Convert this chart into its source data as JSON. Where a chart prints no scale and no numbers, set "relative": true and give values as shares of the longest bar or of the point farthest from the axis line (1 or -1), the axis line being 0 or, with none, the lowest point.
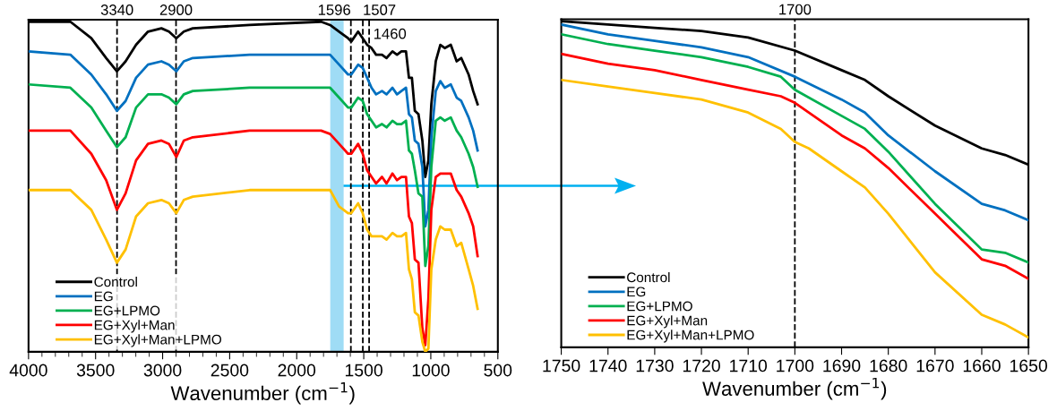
{
  "chart_data": [
    {
      "type": "line",
      "relative": true,
      "xlabel": "Wavenumber (cm$^{−1}$)",
      "xlim": [
        4000,
        500
      ],
      "xticks": [
        4000,
        3500,
        3000,
        2500,
        2000,
        1500,
        1000,
        500
      ],
      "tick_labels": "x",
      "grid": false,
      "legend": "bottom left",
      "line_style": "solid",
      "marker": "none",
      "x": [
        4000,
        3688,
        3532,
        3421,
        3341,
        3276,
        3198,
        3109,
        3009,
        2953,
        2898,
        2842,
        2775,
        2352,
        1818,
        1751,
        1684,
        1617,
        1593,
        1542,
        1508,
        1475,
        1442,
        1408,
        1364,
        1330,
        1286,
        1252,
        1219,
        1185,
        1163,
        1141,
        1119,
        1092,
        1063,
        1041,
        1018,
        996,
        963,
        929,
        896,
        851,
        807,
        773,
        718,
        684,
        651
      ],
      "series": [
        {
          "name": "Control",
          "color": "#000000",
          "values": [
            1.0,
            1.0,
            0.95,
            0.89,
            0.85,
            0.88,
            0.93,
            0.97,
            0.98,
            0.97,
            0.95,
            0.97,
            0.98,
            0.99,
            1.0,
            0.99,
            0.97,
            0.95,
            0.94,
            0.97,
            0.95,
            0.93,
            0.92,
            0.9,
            0.9,
            0.89,
            0.91,
            0.9,
            0.91,
            0.91,
            0.83,
            0.83,
            0.73,
            0.72,
            0.64,
            0.53,
            0.58,
            0.75,
            0.88,
            0.93,
            0.92,
            0.93,
            0.88,
            0.89,
            0.84,
            0.79,
            0.75
          ]
        },
        {
          "name": "EG",
          "color": "#0070c0",
          "values": [
            0.91,
            0.9,
            0.84,
            0.78,
            0.73,
            0.76,
            0.83,
            0.87,
            0.88,
            0.87,
            0.85,
            0.88,
            0.89,
            0.9,
            0.9,
            0.9,
            0.87,
            0.84,
            0.84,
            0.87,
            0.86,
            0.83,
            0.8,
            0.78,
            0.79,
            0.78,
            0.8,
            0.78,
            0.79,
            0.8,
            0.72,
            0.71,
            0.64,
            0.63,
            0.56,
            0.38,
            0.43,
            0.65,
            0.79,
            0.82,
            0.8,
            0.81,
            0.77,
            0.76,
            0.71,
            0.67,
            0.61
          ]
        },
        {
          "name": "EG+LPMO",
          "color": "#00b050",
          "values": [
            0.81,
            0.8,
            0.74,
            0.67,
            0.62,
            0.65,
            0.74,
            0.78,
            0.78,
            0.77,
            0.75,
            0.78,
            0.79,
            0.8,
            0.8,
            0.8,
            0.77,
            0.74,
            0.74,
            0.77,
            0.76,
            0.72,
            0.7,
            0.68,
            0.69,
            0.68,
            0.7,
            0.69,
            0.69,
            0.7,
            0.61,
            0.6,
            0.55,
            0.48,
            0.47,
            0.26,
            0.32,
            0.56,
            0.7,
            0.71,
            0.7,
            0.71,
            0.67,
            0.65,
            0.6,
            0.56,
            0.5
          ]
        },
        {
          "name": "EG+Xyl+Man",
          "color": "#ff0000",
          "values": [
            0.67,
            0.67,
            0.6,
            0.52,
            0.43,
            0.48,
            0.58,
            0.63,
            0.64,
            0.63,
            0.59,
            0.64,
            0.65,
            0.67,
            0.67,
            0.66,
            0.63,
            0.6,
            0.6,
            0.63,
            0.6,
            0.55,
            0.53,
            0.51,
            0.53,
            0.51,
            0.54,
            0.52,
            0.53,
            0.53,
            0.41,
            0.39,
            0.28,
            0.27,
            0.07,
            0.02,
            0.16,
            0.43,
            0.53,
            0.54,
            0.54,
            0.54,
            0.49,
            0.47,
            0.42,
            0.38,
            0.29
          ]
        },
        {
          "name": "EG+Xyl+Man+LPMO",
          "color": "#ffc000",
          "values": [
            0.49,
            0.49,
            0.43,
            0.34,
            0.27,
            0.31,
            0.41,
            0.45,
            0.46,
            0.45,
            0.42,
            0.46,
            0.47,
            0.49,
            0.49,
            0.49,
            0.44,
            0.42,
            0.42,
            0.45,
            0.42,
            0.37,
            0.35,
            0.35,
            0.35,
            0.34,
            0.36,
            0.35,
            0.35,
            0.36,
            0.25,
            0.22,
            0.12,
            0.11,
            0.03,
            0.0,
            0.01,
            0.25,
            0.34,
            0.38,
            0.37,
            0.37,
            0.32,
            0.33,
            0.25,
            0.2,
            0.13
          ]
        }
      ],
      "ref_lines": [
        {
          "axis": "x",
          "value": 3340,
          "label": "3340",
          "color": "#000000",
          "line_style": "dashed"
        },
        {
          "axis": "x",
          "value": 2900,
          "label": "2900",
          "color": "#000000",
          "line_style": "dashed"
        },
        {
          "axis": "x",
          "value": 1596,
          "label": "1596",
          "color": "#000000",
          "line_style": "dashed"
        },
        {
          "axis": "x",
          "value": 1507,
          "label": "1507",
          "color": "#000000",
          "line_style": "dashed"
        },
        {
          "axis": "x",
          "value": 1460,
          "label": "1460",
          "color": "#000000",
          "line_style": "dashed"
        }
      ],
      "bands": [
        {
          "axis": "x",
          "from": 1750,
          "to": 1650,
          "color": "#9fdcf5"
        }
      ]
    },
    {
      "type": "line",
      "relative": true,
      "xlabel": "Wavenumber (cm$^{−1}$)",
      "xlim": [
        1750,
        1650
      ],
      "xticks": [
        1750,
        1740,
        1730,
        1720,
        1710,
        1700,
        1690,
        1680,
        1670,
        1660,
        1650
      ],
      "tick_labels": "x",
      "grid": false,
      "legend": "bottom left",
      "line_style": "solid",
      "marker": "none",
      "series": [
        {
          "name": "Control",
          "color": "#000000",
          "x": [
            1750,
            1740,
            1730,
            1720,
            1710,
            1700,
            1690,
            1685,
            1680,
            1670,
            1660,
            1655,
            1650
          ],
          "values": [
            1.0,
            0.99,
            0.98,
            0.97,
            0.95,
            0.91,
            0.85,
            0.82,
            0.77,
            0.68,
            0.61,
            0.59,
            0.56
          ]
        },
        {
          "name": "EG",
          "color": "#0070c0",
          "x": [
            1750,
            1740,
            1730,
            1720,
            1710,
            1700,
            1690,
            1685,
            1680,
            1670,
            1660,
            1655,
            1650
          ],
          "values": [
            0.99,
            0.96,
            0.94,
            0.92,
            0.89,
            0.83,
            0.76,
            0.72,
            0.65,
            0.54,
            0.44,
            0.42,
            0.39
          ]
        },
        {
          "name": "EG+LPMO",
          "color": "#00b050",
          "x": [
            1750,
            1740,
            1730,
            1720,
            1710,
            1703,
            1700,
            1690,
            1685,
            1680,
            1670,
            1660,
            1655,
            1650
          ],
          "values": [
            0.96,
            0.93,
            0.91,
            0.89,
            0.86,
            0.83,
            0.79,
            0.71,
            0.67,
            0.6,
            0.44,
            0.3,
            0.29,
            0.26
          ]
        },
        {
          "name": "EG+Xyl+Man",
          "color": "#ff0000",
          "x": [
            1750,
            1740,
            1730,
            1720,
            1710,
            1703,
            1700,
            1690,
            1685,
            1680,
            1670,
            1660,
            1655,
            1650
          ],
          "values": [
            0.9,
            0.87,
            0.85,
            0.82,
            0.79,
            0.77,
            0.75,
            0.65,
            0.61,
            0.55,
            0.41,
            0.27,
            0.25,
            0.21
          ]
        },
        {
          "name": "EG+Xyl+Man+LPMO",
          "color": "#ffc000",
          "x": [
            1750,
            1740,
            1730,
            1720,
            1710,
            1703,
            1700,
            1697,
            1690,
            1685,
            1680,
            1670,
            1660,
            1655,
            1650
          ],
          "values": [
            0.82,
            0.8,
            0.78,
            0.76,
            0.72,
            0.67,
            0.63,
            0.61,
            0.54,
            0.49,
            0.41,
            0.23,
            0.1,
            0.07,
            0.03
          ]
        }
      ],
      "ref_lines": [
        {
          "axis": "x",
          "value": 1700,
          "label": "1700",
          "color": "#000000",
          "line_style": "dashed"
        }
      ]
    }
  ]
}
